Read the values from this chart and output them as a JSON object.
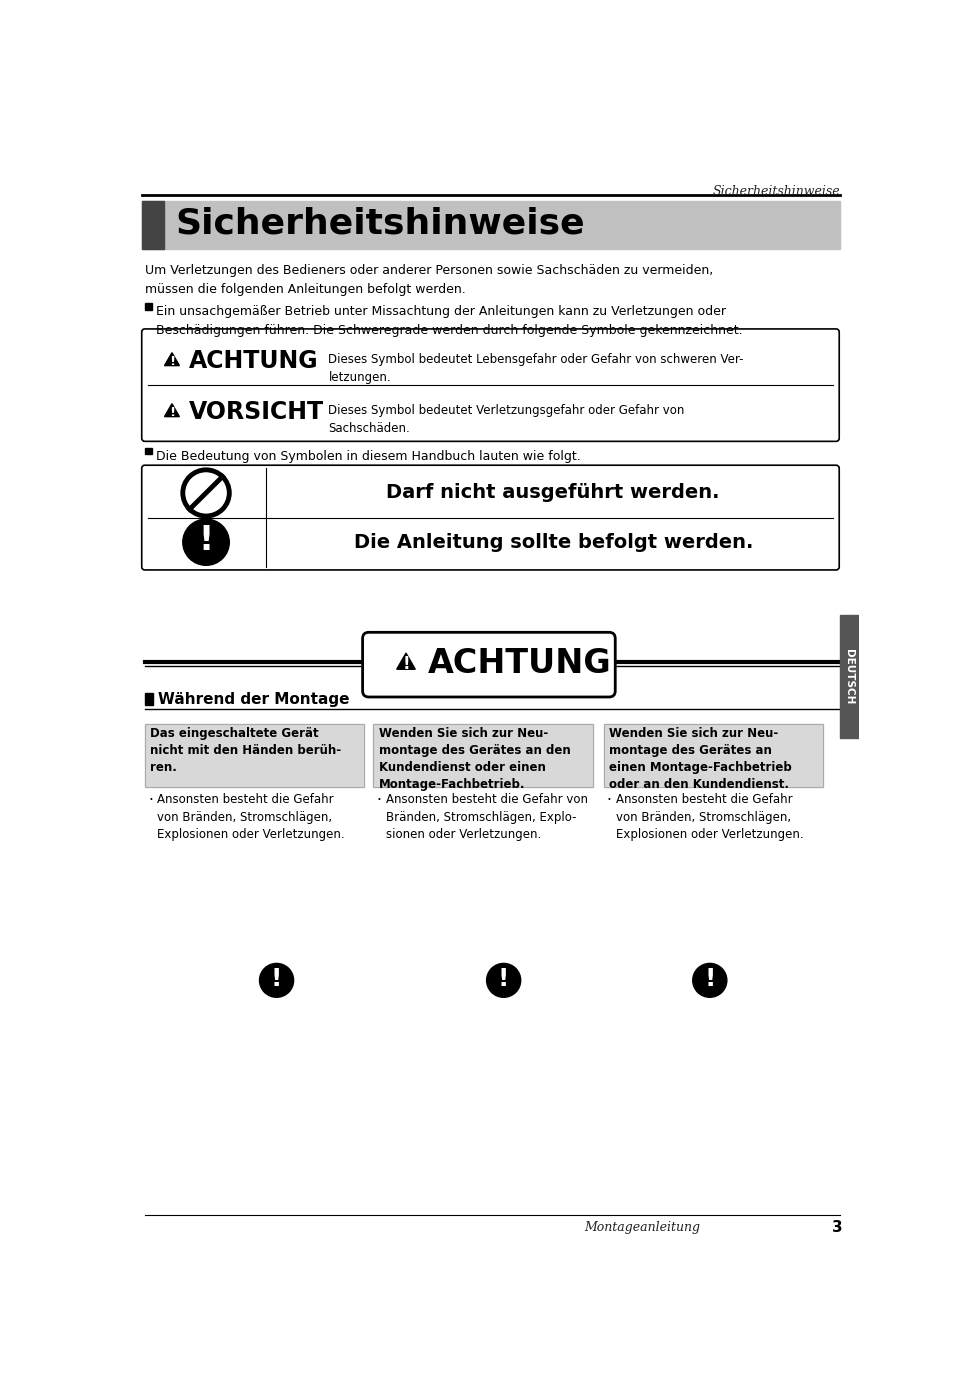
{
  "page_header": "Sicherheitshinweise",
  "title": "Sicherheitshinweise",
  "title_bg": "#c0c0c0",
  "title_dark_bar": "#444444",
  "intro_text1": "Um Verletzungen des Bedieners oder anderer Personen sowie Sachschäden zu vermeiden,\nmüssen die folgenden Anleitungen befolgt werden.",
  "intro_text2": "Ein unsachgemäßer Betrieb unter Missachtung der Anleitungen kann zu Verletzungen oder\nBeschädigungen führen. Die Schweregrade werden durch folgende Symbole gekennzeichnet.",
  "warning_row1_label": "ACHTUNG",
  "warning_row1_text": "Dieses Symbol bedeutet Lebensgefahr oder Gefahr von schweren Ver-\nletzungen.",
  "warning_row2_label": "VORSICHT",
  "warning_row2_text": "Dieses Symbol bedeutet Verletzungsgefahr oder Gefahr von\nSachschäden.",
  "symbol_intro": "Die Bedeutung von Symbolen in diesem Handbuch lauten wie folgt.",
  "symbol_row1_text": "Darf nicht ausgeführt werden.",
  "symbol_row2_text": "Die Anleitung sollte befolgt werden.",
  "achtung_banner": "ACHTUNG",
  "section_title": "Während der Montage",
  "col1_bold": "Das eingeschaltete Gerät\nnicht mit den Händen berüh-\nren.",
  "col2_bold": "Wenden Sie sich zur Neu-\nmontage des Gerätes an den\nKundendienst oder einen\nMontage-Fachbetrieb.",
  "col3_bold": "Wenden Sie sich zur Neu-\nmontage des Gerätes an\neinen Montage-Fachbetrieb\noder an den Kundendienst.",
  "col1_text": "Ansonsten besteht die Gefahr\nvon Bränden, Stromschlägen,\nExplosionen oder Verletzungen.",
  "col2_text": "Ansonsten besteht die Gefahr von\nBränden, Stromschlägen, Explo-\nsionen oder Verletzungen.",
  "col3_text": "Ansonsten besteht die Gefahr\nvon Bränden, Stromschlägen,\nExplosionen oder Verletzungen.",
  "footer_label": "Montageanleitung",
  "footer_page": "3",
  "sidebar_text": "DEUTSCH",
  "bg_color": "#ffffff"
}
